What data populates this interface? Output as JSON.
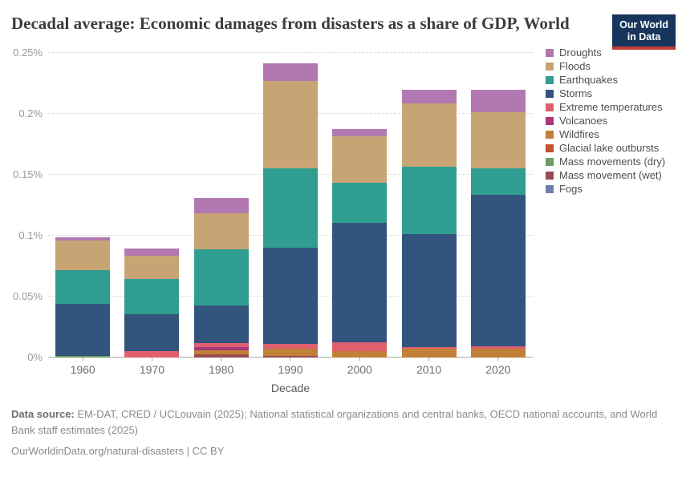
{
  "header": {
    "title": "Decadal average: Economic damages from disasters as a share of GDP, World",
    "logo": {
      "line1": "Our World",
      "line2": "in Data",
      "bg": "#18365d",
      "accent": "#c23b33"
    }
  },
  "chart_data": {
    "type": "bar",
    "stacked": true,
    "title": "Decadal average: Economic damages from disasters as a share of GDP, World",
    "xlabel": "Decade",
    "ylabel": "",
    "ymax": 0.25,
    "grid": "dashed horizontal",
    "legend_position": "right",
    "units": "% of GDP",
    "categories": [
      "1960",
      "1970",
      "1980",
      "1990",
      "2000",
      "2010",
      "2020"
    ],
    "yticks": [
      {
        "value": 0,
        "label": "0%"
      },
      {
        "value": 0.05,
        "label": "0.05%"
      },
      {
        "value": 0.1,
        "label": "0.1%"
      },
      {
        "value": 0.15,
        "label": "0.15%"
      },
      {
        "value": 0.2,
        "label": "0.2%"
      },
      {
        "value": 0.25,
        "label": "0.25%"
      }
    ],
    "series": [
      {
        "name": "Droughts",
        "color": "#b278b1",
        "values": [
          0.0025,
          0.006,
          0.012,
          0.0145,
          0.0065,
          0.0115,
          0.0185
        ]
      },
      {
        "name": "Floods",
        "color": "#c8a475",
        "values": [
          0.0245,
          0.0195,
          0.03,
          0.0715,
          0.038,
          0.0515,
          0.0455
        ]
      },
      {
        "name": "Earthquakes",
        "color": "#2f9e90",
        "values": [
          0.0275,
          0.029,
          0.046,
          0.0655,
          0.033,
          0.0555,
          0.022
        ]
      },
      {
        "name": "Storms",
        "color": "#33547d",
        "values": [
          0.0425,
          0.03,
          0.031,
          0.0785,
          0.0975,
          0.0925,
          0.1245
        ]
      },
      {
        "name": "Extreme temperatures",
        "color": "#e05f6e",
        "values": [
          0,
          0.0055,
          0.003,
          0.004,
          0.0075,
          0.0015,
          0.0018
        ]
      },
      {
        "name": "Volcanoes",
        "color": "#a53878",
        "values": [
          0,
          0,
          0.003,
          0,
          0,
          0,
          0
        ]
      },
      {
        "name": "Wildfires",
        "color": "#c08038",
        "values": [
          0.0005,
          0,
          0.003,
          0.0065,
          0.0055,
          0.0075,
          0.0075
        ]
      },
      {
        "name": "Glacial lake outbursts",
        "color": "#c2512d",
        "values": [
          0,
          0,
          0,
          0,
          0,
          0,
          0
        ]
      },
      {
        "name": "Mass movements (dry)",
        "color": "#6e9e62",
        "values": [
          0.0012,
          0,
          0,
          0,
          0,
          0,
          0
        ]
      },
      {
        "name": "Mass movement (wet)",
        "color": "#984a52",
        "values": [
          0,
          0,
          0.003,
          0.0012,
          0,
          0,
          0
        ]
      },
      {
        "name": "Fogs",
        "color": "#6d80ad",
        "values": [
          0,
          0,
          0,
          0,
          0,
          0,
          0
        ]
      }
    ]
  },
  "footer": {
    "source_label": "Data source:",
    "source_text": "EM-DAT, CRED / UCLouvain (2025); National statistical organizations and central banks, OECD national accounts, and World Bank staff estimates (2025)",
    "url_line": "OurWorldinData.org/natural-disasters | CC BY"
  }
}
